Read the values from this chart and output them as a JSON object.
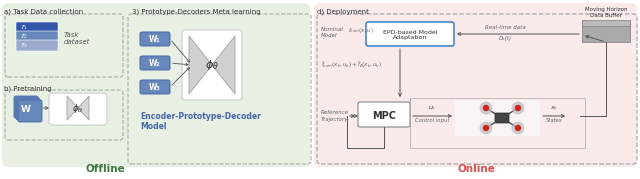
{
  "fig_width": 6.4,
  "fig_height": 1.79,
  "dpi": 100,
  "bg_color": "#ffffff",
  "offline_bg": "#e8f0e4",
  "online_bg": "#faeaea",
  "offline_label": "Offline",
  "online_label": "Online",
  "offline_label_color": "#3a7a3a",
  "online_label_color": "#e05050",
  "section_a_title": "a) Task Data collection",
  "section_b_title": "b) Pretraining",
  "section_3_title": "3) Prototype-Decoders Meta learning",
  "section_d_title": "d) Deployment",
  "encoder_decoder_label": "Encoder-Prototype-Decoder\nModel",
  "encoder_decoder_color": "#4466aa",
  "task_label": "Task\ndataset",
  "epd_label": "EPD-based Model\nAdaptation",
  "epd_box_color": "#4488cc",
  "mpc_label": "MPC",
  "nominal_model_label": "Nominal\nModel",
  "reference_traj_label": "Reference\nTrajectory",
  "moving_horizon_label": "Moving Horizon\nData Buffer",
  "real_time_data_label": "Real-time data",
  "Dk_label": "Dₖ(t)",
  "W1_label": "W₁",
  "W2_label": "W₂",
  "W3_label": "W₃",
  "W_label": "W",
  "blues": [
    "#3355aa",
    "#6688bb",
    "#99aacc"
  ],
  "box_color_blue": "#6688bb",
  "box_color_blue_dark": "#4466aa"
}
